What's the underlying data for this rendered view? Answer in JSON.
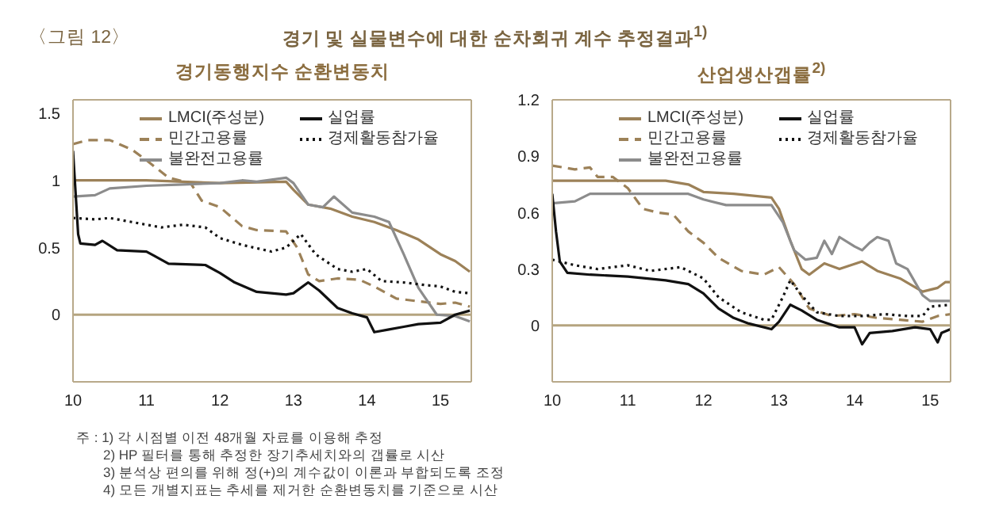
{
  "chart_data": [
    {
      "type": "line",
      "title": "경기동행지수 순환변동치",
      "xlim": [
        10,
        15.42
      ],
      "xticks": [
        10,
        11,
        12,
        13,
        14,
        15
      ],
      "ylim": [
        -0.5,
        1.6
      ],
      "yticks": [
        0,
        0.5,
        1,
        1.5
      ],
      "legend": "top",
      "grid": false,
      "ref_lines": [
        {
          "axis": "y",
          "value": 0,
          "color": "#b5a47f"
        }
      ],
      "annotations": [
        "〈그림 12〉",
        "경기 및 실물변수에 대한 순차회귀 계수 추정결과$^{1)}$",
        "주 : 1) 각 시점별 이전 48개월 자료를 이용해 추정",
        "2) HP 필터를 통해 추정한 장기추세치와의 갭률로 시산",
        "3) 분석상 편의를 위해 정(+)의 계수값이 이론과 부합되도록 조정",
        "4) 모든 개별지표는 추세를 제거한 순환변동치를 기준으로 시산"
      ],
      "series": [
        {
          "name": "LMCI(주성분)",
          "color": "#9c8158",
          "line_style": "solid",
          "x": [
            10,
            11,
            12,
            12.9,
            13.0,
            13.2,
            13.5,
            13.8,
            14.1,
            14.4,
            14.7,
            15,
            15.2,
            15.4
          ],
          "values": [
            1.0,
            1.0,
            0.98,
            0.99,
            0.93,
            0.82,
            0.79,
            0.73,
            0.69,
            0.63,
            0.56,
            0.45,
            0.4,
            0.32
          ]
        },
        {
          "name": "민간고용률",
          "color": "#9c8158",
          "line_style": "dashed",
          "x": [
            10,
            10.2,
            10.5,
            10.8,
            11,
            11.3,
            11.6,
            11.75,
            12,
            12.3,
            12.5,
            12.9,
            13.05,
            13.2,
            13.35,
            13.6,
            13.9,
            14.1,
            14.4,
            14.7,
            15,
            15.2,
            15.4
          ],
          "values": [
            1.27,
            1.3,
            1.3,
            1.23,
            1.15,
            1.02,
            0.98,
            0.85,
            0.8,
            0.66,
            0.63,
            0.62,
            0.5,
            0.3,
            0.25,
            0.27,
            0.26,
            0.21,
            0.12,
            0.1,
            0.08,
            0.09,
            0.06
          ]
        },
        {
          "name": "불완전고용률",
          "color": "#8c8c8c",
          "line_style": "solid",
          "x": [
            10,
            10.3,
            10.5,
            11,
            11.5,
            12,
            12.3,
            12.5,
            12.9,
            13.0,
            13.2,
            13.4,
            13.55,
            13.8,
            14.1,
            14.3,
            14.5,
            14.7,
            14.95,
            15.2,
            15.4
          ],
          "values": [
            0.88,
            0.89,
            0.94,
            0.96,
            0.97,
            0.98,
            1.0,
            0.99,
            1.02,
            0.98,
            0.82,
            0.8,
            0.88,
            0.76,
            0.73,
            0.69,
            0.45,
            0.2,
            0.0,
            -0.01,
            -0.05
          ]
        },
        {
          "name": "실업률",
          "color": "#111111",
          "line_style": "solid",
          "x": [
            10,
            10.07,
            10.1,
            10.3,
            10.4,
            10.6,
            11,
            11.1,
            11.3,
            11.8,
            12,
            12.2,
            12.5,
            12.9,
            13.0,
            13.2,
            13.35,
            13.6,
            13.8,
            14.0,
            14.1,
            14.3,
            14.5,
            14.7,
            15,
            15.2,
            15.4
          ],
          "values": [
            1.22,
            0.6,
            0.53,
            0.52,
            0.55,
            0.48,
            0.47,
            0.44,
            0.38,
            0.37,
            0.31,
            0.24,
            0.17,
            0.15,
            0.16,
            0.24,
            0.18,
            0.05,
            0.01,
            -0.02,
            -0.13,
            -0.11,
            -0.09,
            -0.07,
            -0.06,
            0.0,
            0.03
          ]
        },
        {
          "name": "경제활동참가율",
          "color": "#111111",
          "line_style": "dotted",
          "x": [
            10,
            10.3,
            10.5,
            10.8,
            11.2,
            11.5,
            11.8,
            12,
            12.3,
            12.7,
            12.9,
            13.1,
            13.3,
            13.6,
            13.8,
            14.0,
            14.2,
            14.5,
            14.8,
            15,
            15.2,
            15.4
          ],
          "values": [
            0.72,
            0.71,
            0.72,
            0.69,
            0.65,
            0.67,
            0.65,
            0.57,
            0.52,
            0.47,
            0.5,
            0.6,
            0.45,
            0.34,
            0.32,
            0.34,
            0.25,
            0.24,
            0.22,
            0.21,
            0.17,
            0.16
          ]
        }
      ]
    },
    {
      "type": "line",
      "title": "산업생산갭률$^{2)}$",
      "xlim": [
        10,
        15.27
      ],
      "xticks": [
        10,
        11,
        12,
        13,
        14,
        15
      ],
      "ylim": [
        -0.3,
        1.2
      ],
      "yticks": [
        0,
        0.3,
        0.6,
        0.9,
        1.2
      ],
      "legend": "top",
      "grid": false,
      "ref_lines": [
        {
          "axis": "y",
          "value": 0,
          "color": "#b5a47f"
        }
      ],
      "series": [
        {
          "name": "LMCI(주성분)",
          "color": "#9c8158",
          "line_style": "solid",
          "x": [
            10,
            11,
            11.5,
            11.8,
            12.0,
            12.4,
            12.9,
            13.0,
            13.15,
            13.3,
            13.4,
            13.6,
            13.8,
            14.1,
            14.3,
            14.6,
            14.9,
            15.1,
            15.2,
            15.27
          ],
          "values": [
            0.77,
            0.77,
            0.77,
            0.75,
            0.71,
            0.7,
            0.68,
            0.62,
            0.45,
            0.3,
            0.27,
            0.33,
            0.3,
            0.34,
            0.29,
            0.25,
            0.18,
            0.2,
            0.23,
            0.23
          ]
        },
        {
          "name": "민간고용률",
          "color": "#9c8158",
          "line_style": "dashed",
          "x": [
            10,
            10.3,
            10.5,
            10.6,
            10.8,
            11.0,
            11.2,
            11.4,
            11.6,
            11.8,
            12.0,
            12.2,
            12.5,
            12.8,
            13.0,
            13.2,
            13.4,
            13.7,
            14.0,
            14.3,
            14.6,
            14.9,
            15.1,
            15.27
          ],
          "values": [
            0.85,
            0.83,
            0.84,
            0.79,
            0.79,
            0.73,
            0.62,
            0.6,
            0.59,
            0.5,
            0.44,
            0.36,
            0.29,
            0.27,
            0.31,
            0.22,
            0.09,
            0.05,
            0.06,
            0.04,
            0.03,
            0.02,
            0.05,
            0.06
          ]
        },
        {
          "name": "불완전고용률",
          "color": "#8c8c8c",
          "line_style": "solid",
          "x": [
            10,
            10.3,
            10.5,
            11,
            11.8,
            12.0,
            12.3,
            12.5,
            12.9,
            13.05,
            13.2,
            13.35,
            13.5,
            13.6,
            13.7,
            13.8,
            14.0,
            14.1,
            14.2,
            14.3,
            14.45,
            14.55,
            14.7,
            14.9,
            15.0,
            15.27
          ],
          "values": [
            0.65,
            0.66,
            0.7,
            0.7,
            0.7,
            0.67,
            0.64,
            0.64,
            0.64,
            0.55,
            0.4,
            0.35,
            0.36,
            0.45,
            0.38,
            0.47,
            0.42,
            0.4,
            0.44,
            0.47,
            0.45,
            0.33,
            0.3,
            0.16,
            0.13,
            0.13
          ]
        },
        {
          "name": "실업률",
          "color": "#111111",
          "line_style": "solid",
          "x": [
            10,
            10.05,
            10.1,
            10.2,
            10.5,
            11,
            11.5,
            11.8,
            12.0,
            12.2,
            12.4,
            12.6,
            12.9,
            13.0,
            13.15,
            13.3,
            13.5,
            13.8,
            14.0,
            14.1,
            14.2,
            14.5,
            14.8,
            15.0,
            15.1,
            15.15,
            15.27
          ],
          "values": [
            0.7,
            0.5,
            0.34,
            0.28,
            0.27,
            0.26,
            0.24,
            0.22,
            0.17,
            0.09,
            0.04,
            0.01,
            -0.02,
            0.02,
            0.11,
            0.08,
            0.03,
            -0.01,
            -0.01,
            -0.1,
            -0.04,
            -0.03,
            -0.01,
            -0.02,
            -0.09,
            -0.04,
            -0.02
          ]
        },
        {
          "name": "경제활동참가율",
          "color": "#111111",
          "line_style": "dotted",
          "x": [
            10,
            10.3,
            10.6,
            11.0,
            11.3,
            11.7,
            12.0,
            12.2,
            12.5,
            12.8,
            12.9,
            13.05,
            13.15,
            13.3,
            13.5,
            13.8,
            14.1,
            14.4,
            14.7,
            14.9,
            15.0,
            15.27
          ],
          "values": [
            0.35,
            0.32,
            0.3,
            0.32,
            0.29,
            0.31,
            0.25,
            0.15,
            0.07,
            0.03,
            0.03,
            0.15,
            0.24,
            0.16,
            0.07,
            0.05,
            0.05,
            0.06,
            0.05,
            0.05,
            0.1,
            0.11
          ]
        }
      ]
    }
  ]
}
